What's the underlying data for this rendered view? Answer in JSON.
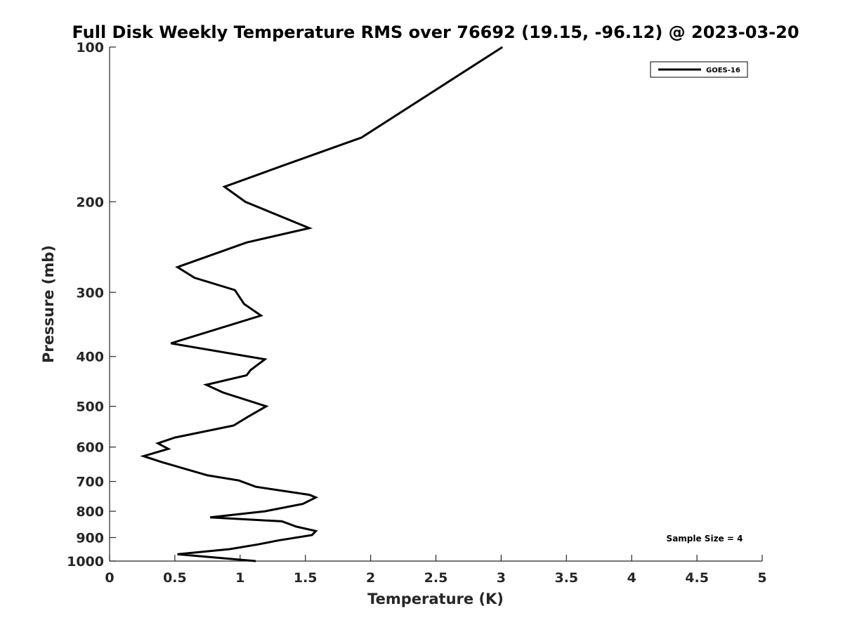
{
  "chart_data": {
    "type": "line",
    "title": "Full Disk Weekly Temperature RMS over 76692 (19.15, -96.12) @ 2023-03-20",
    "xlabel": "Temperature (K)",
    "ylabel": "Pressure (mb)",
    "xlim": [
      0,
      5
    ],
    "ylim": [
      100,
      1000
    ],
    "yscale": "log",
    "yaxis_reversed": true,
    "grid": false,
    "legend_position": "top-right",
    "x_ticks": [
      "0",
      "0.5",
      "1",
      "1.5",
      "2",
      "2.5",
      "3",
      "3.5",
      "4",
      "4.5",
      "5"
    ],
    "x_tick_values": [
      0,
      0.5,
      1,
      1.5,
      2,
      2.5,
      3,
      3.5,
      4,
      4.5,
      5
    ],
    "y_ticks": [
      "100",
      "200",
      "300",
      "400",
      "500",
      "600",
      "700",
      "800",
      "900",
      "1000"
    ],
    "y_tick_values": [
      100,
      200,
      300,
      400,
      500,
      600,
      700,
      800,
      900,
      1000
    ],
    "series": [
      {
        "name": "GOES-16",
        "color": "#000000",
        "points": [
          [
            3.01,
            100
          ],
          [
            1.93,
            150
          ],
          [
            1.33,
            170
          ],
          [
            0.88,
            187
          ],
          [
            1.04,
            200
          ],
          [
            1.53,
            225
          ],
          [
            1.05,
            240
          ],
          [
            0.52,
            268
          ],
          [
            0.65,
            281
          ],
          [
            0.96,
            297
          ],
          [
            1.03,
            316
          ],
          [
            1.16,
            333
          ],
          [
            0.47,
            377
          ],
          [
            1.19,
            405
          ],
          [
            1.08,
            425
          ],
          [
            1.05,
            435
          ],
          [
            0.74,
            454
          ],
          [
            0.87,
            470
          ],
          [
            1.2,
            500
          ],
          [
            1.06,
            524
          ],
          [
            0.95,
            545
          ],
          [
            0.5,
            575
          ],
          [
            0.37,
            590
          ],
          [
            0.45,
            605
          ],
          [
            0.26,
            625
          ],
          [
            0.4,
            642
          ],
          [
            0.75,
            681
          ],
          [
            0.99,
            697
          ],
          [
            1.12,
            717
          ],
          [
            1.53,
            743
          ],
          [
            1.58,
            752
          ],
          [
            1.48,
            774
          ],
          [
            1.19,
            800
          ],
          [
            0.77,
            822
          ],
          [
            1.32,
            837
          ],
          [
            1.43,
            857
          ],
          [
            1.58,
            874
          ],
          [
            1.55,
            890
          ],
          [
            1.29,
            912
          ],
          [
            1.14,
            928
          ],
          [
            0.92,
            948
          ],
          [
            0.52,
            970
          ],
          [
            1.12,
            1000
          ]
        ]
      }
    ],
    "annotations": [
      "Sample Size = 4"
    ]
  }
}
